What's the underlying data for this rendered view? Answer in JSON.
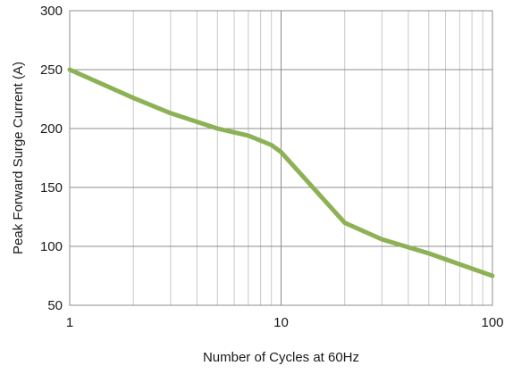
{
  "chart_data": {
    "type": "line",
    "title": "",
    "xlabel": "Number of Cycles at 60Hz",
    "ylabel": "Peak Forward Surge Current (A)",
    "x_scale": "log",
    "xlim": [
      1,
      100
    ],
    "ylim": [
      50,
      300
    ],
    "x_ticks": [
      1,
      10,
      100
    ],
    "x_tick_labels": [
      "1",
      "10",
      "100"
    ],
    "y_ticks": [
      50,
      100,
      150,
      200,
      250,
      300
    ],
    "y_tick_labels": [
      "50",
      "100",
      "150",
      "200",
      "250",
      "300"
    ],
    "grid": true,
    "series": [
      {
        "color": "#8db155",
        "x": [
          1,
          2,
          3,
          5,
          7,
          9,
          10,
          20,
          30,
          50,
          100
        ],
        "y": [
          250,
          226,
          213,
          200,
          194,
          186,
          180,
          120,
          106,
          94,
          75
        ]
      }
    ]
  }
}
